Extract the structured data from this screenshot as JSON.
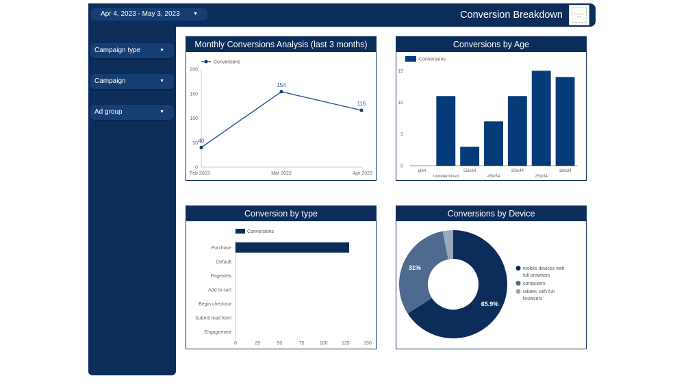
{
  "header": {
    "date_range": "Apr 4, 2023 - May 3, 2023",
    "title": "Conversion Breakdown",
    "logo_placeholder": "Insert Logo Here"
  },
  "filters": [
    {
      "label": "Campaign type"
    },
    {
      "label": "Campaign"
    },
    {
      "label": "Ad group"
    }
  ],
  "colors": {
    "navy": "#0c2d5a",
    "bar_blue": "#053b78",
    "line_blue": "#2d5c9e",
    "computers": "#4f6a8f",
    "tablets": "#9aa8bb"
  },
  "chart_data": [
    {
      "id": "monthly",
      "type": "line",
      "title": "Monthly Conversions Analysis (last 3 months)",
      "legend": [
        "Conversions"
      ],
      "legend_position": "top-left",
      "categories": [
        "Feb 2023",
        "Mar 2023",
        "Apr 2023"
      ],
      "series": [
        {
          "name": "Conversions",
          "values": [
            40,
            154,
            116
          ]
        }
      ],
      "data_labels": [
        "40",
        "154",
        "116"
      ],
      "yticks": [
        "0",
        "50",
        "100",
        "150",
        "200"
      ],
      "ylim": [
        0,
        200
      ]
    },
    {
      "id": "age",
      "type": "bar",
      "title": "Conversions by Age",
      "legend": [
        "Conversions"
      ],
      "legend_position": "top-left",
      "categories": [
        "gt64",
        "Undetermined",
        "55to64",
        "45to54",
        "35to44",
        "25to34",
        "18to24"
      ],
      "series": [
        {
          "name": "Conversions",
          "values": [
            0,
            11,
            3,
            7,
            11,
            15,
            14
          ]
        }
      ],
      "yticks": [
        "0",
        "5",
        "10",
        "15"
      ],
      "ylim": [
        0,
        16
      ]
    },
    {
      "id": "type",
      "type": "bar",
      "orientation": "horizontal",
      "title": "Conversion by type",
      "legend": [
        "Conversions"
      ],
      "legend_position": "top-left",
      "categories": [
        "Purchase",
        "Default",
        "Pageview",
        "Add to cart",
        "Begin checkout",
        "Submit lead form",
        "Engagement"
      ],
      "series": [
        {
          "name": "Conversions",
          "values": [
            129,
            0,
            0,
            0,
            0,
            0,
            0
          ]
        }
      ],
      "xticks": [
        "0",
        "25",
        "50",
        "75",
        "100",
        "125",
        "150"
      ],
      "xlim": [
        0,
        150
      ]
    },
    {
      "id": "device",
      "type": "pie",
      "donut": true,
      "title": "Conversions by Device",
      "legend_position": "right",
      "slices": [
        {
          "label": "mobile devices with full browsers",
          "value": 65.9,
          "display": "65.9%"
        },
        {
          "label": "computers",
          "value": 31.0,
          "display": "31%"
        },
        {
          "label": "tablets with full browsers",
          "value": 3.1,
          "display": ""
        }
      ]
    }
  ]
}
